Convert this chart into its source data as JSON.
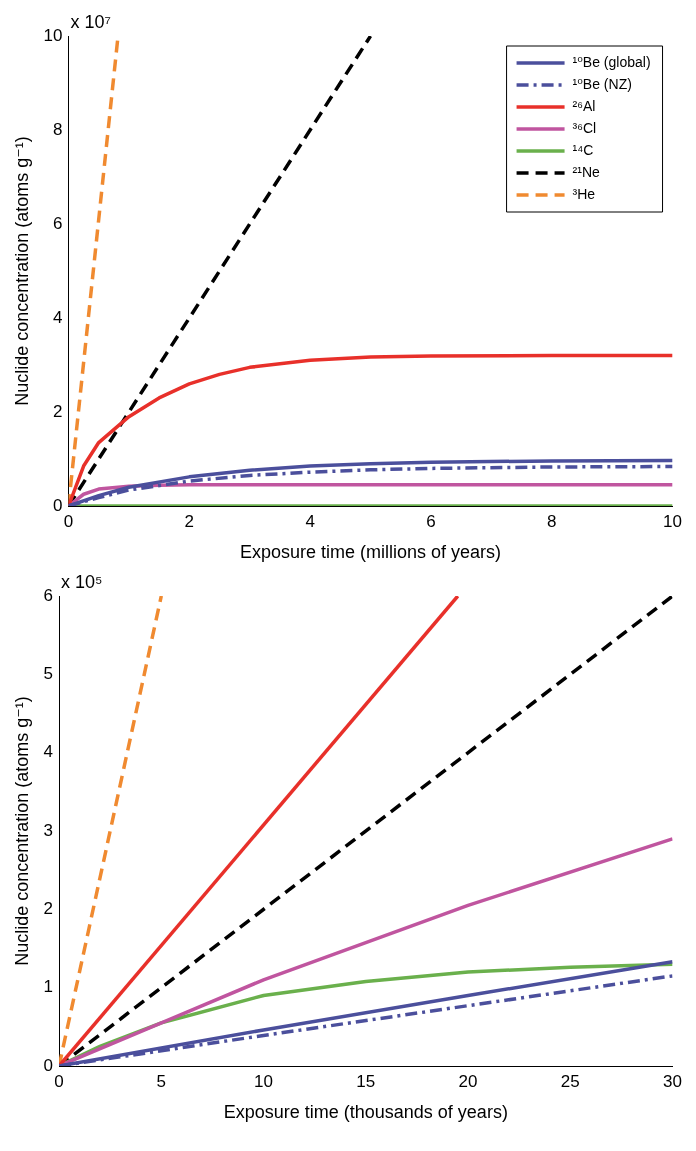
{
  "chart_data": [
    {
      "type": "line",
      "xlabel": "Exposure time (millions of years)",
      "ylabel": "Nuclide concentration (atoms g⁻¹)",
      "annotations": [
        "x 10⁷"
      ],
      "xlim": [
        0,
        10
      ],
      "ylim": [
        0,
        10
      ],
      "xticks": [
        0,
        2,
        4,
        6,
        8,
        10
      ],
      "yticks": [
        0,
        2,
        4,
        6,
        8,
        10
      ],
      "legend": "top right",
      "marker": "none",
      "series": [
        {
          "name": "¹⁰Be (global)",
          "color": "#4b4f9c",
          "line_style": "solid",
          "x": [
            0,
            0.5,
            1,
            2,
            3,
            4,
            5,
            6,
            8,
            10
          ],
          "values": [
            0,
            0.22,
            0.4,
            0.62,
            0.76,
            0.85,
            0.9,
            0.93,
            0.96,
            0.97
          ]
        },
        {
          "name": "¹⁰Be (NZ)",
          "color": "#4b4f9c",
          "line_style": "dashdot",
          "x": [
            0,
            0.5,
            1,
            2,
            3,
            4,
            5,
            6,
            8,
            10
          ],
          "values": [
            0,
            0.18,
            0.34,
            0.53,
            0.65,
            0.72,
            0.77,
            0.8,
            0.83,
            0.84
          ]
        },
        {
          "name": "²⁶Al",
          "color": "#e8302a",
          "line_style": "solid",
          "x": [
            0,
            0.25,
            0.5,
            1,
            1.5,
            2,
            2.5,
            3,
            4,
            5,
            6,
            8,
            10
          ],
          "values": [
            0,
            0.85,
            1.35,
            1.9,
            2.3,
            2.6,
            2.8,
            2.95,
            3.1,
            3.17,
            3.19,
            3.2,
            3.2
          ]
        },
        {
          "name": "³⁶Cl",
          "color": "#c0559f",
          "line_style": "solid",
          "x": [
            0,
            0.25,
            0.5,
            1,
            1.5,
            2,
            10
          ],
          "values": [
            0,
            0.25,
            0.36,
            0.42,
            0.44,
            0.45,
            0.45
          ]
        },
        {
          "name": "¹⁴C",
          "color": "#6ab04c",
          "line_style": "solid",
          "x": [
            0,
            10
          ],
          "values": [
            0,
            0
          ]
        },
        {
          "name": "²¹Ne",
          "color": "#000000",
          "line_style": "dashed",
          "x": [
            0,
            5
          ],
          "values": [
            0,
            10
          ]
        },
        {
          "name": "³He",
          "color": "#f08a30",
          "line_style": "dashed",
          "x": [
            0,
            0.82
          ],
          "values": [
            0,
            10
          ]
        }
      ]
    },
    {
      "type": "line",
      "xlabel": "Exposure time (thousands of years)",
      "ylabel": "Nuclide concentration (atoms g⁻¹)",
      "annotations": [
        "x 10⁵"
      ],
      "xlim": [
        0,
        30
      ],
      "ylim": [
        0,
        6
      ],
      "xticks": [
        0,
        5,
        10,
        15,
        20,
        25,
        30
      ],
      "yticks": [
        0,
        1,
        2,
        3,
        4,
        5,
        6
      ],
      "marker": "none",
      "series": [
        {
          "color": "#4b4f9c",
          "line_style": "solid",
          "x": [
            0,
            10,
            20,
            30
          ],
          "values": [
            0,
            0.46,
            0.9,
            1.33
          ]
        },
        {
          "color": "#4b4f9c",
          "line_style": "dashdot",
          "x": [
            0,
            10,
            20,
            30
          ],
          "values": [
            0,
            0.39,
            0.77,
            1.15
          ]
        },
        {
          "color": "#e8302a",
          "line_style": "solid",
          "x": [
            0,
            19.5
          ],
          "values": [
            0,
            6
          ]
        },
        {
          "color": "#c0559f",
          "line_style": "solid",
          "x": [
            0,
            10,
            20,
            30
          ],
          "values": [
            0,
            1.1,
            2.05,
            2.9
          ]
        },
        {
          "color": "#6ab04c",
          "line_style": "solid",
          "x": [
            0,
            2,
            5,
            10,
            15,
            20,
            25,
            30
          ],
          "values": [
            0,
            0.25,
            0.55,
            0.9,
            1.08,
            1.2,
            1.26,
            1.3
          ]
        },
        {
          "color": "#000000",
          "line_style": "dashed",
          "x": [
            0,
            30
          ],
          "values": [
            0,
            6
          ]
        },
        {
          "color": "#f08a30",
          "line_style": "dashed",
          "x": [
            0,
            5
          ],
          "values": [
            0,
            6
          ]
        }
      ]
    }
  ]
}
